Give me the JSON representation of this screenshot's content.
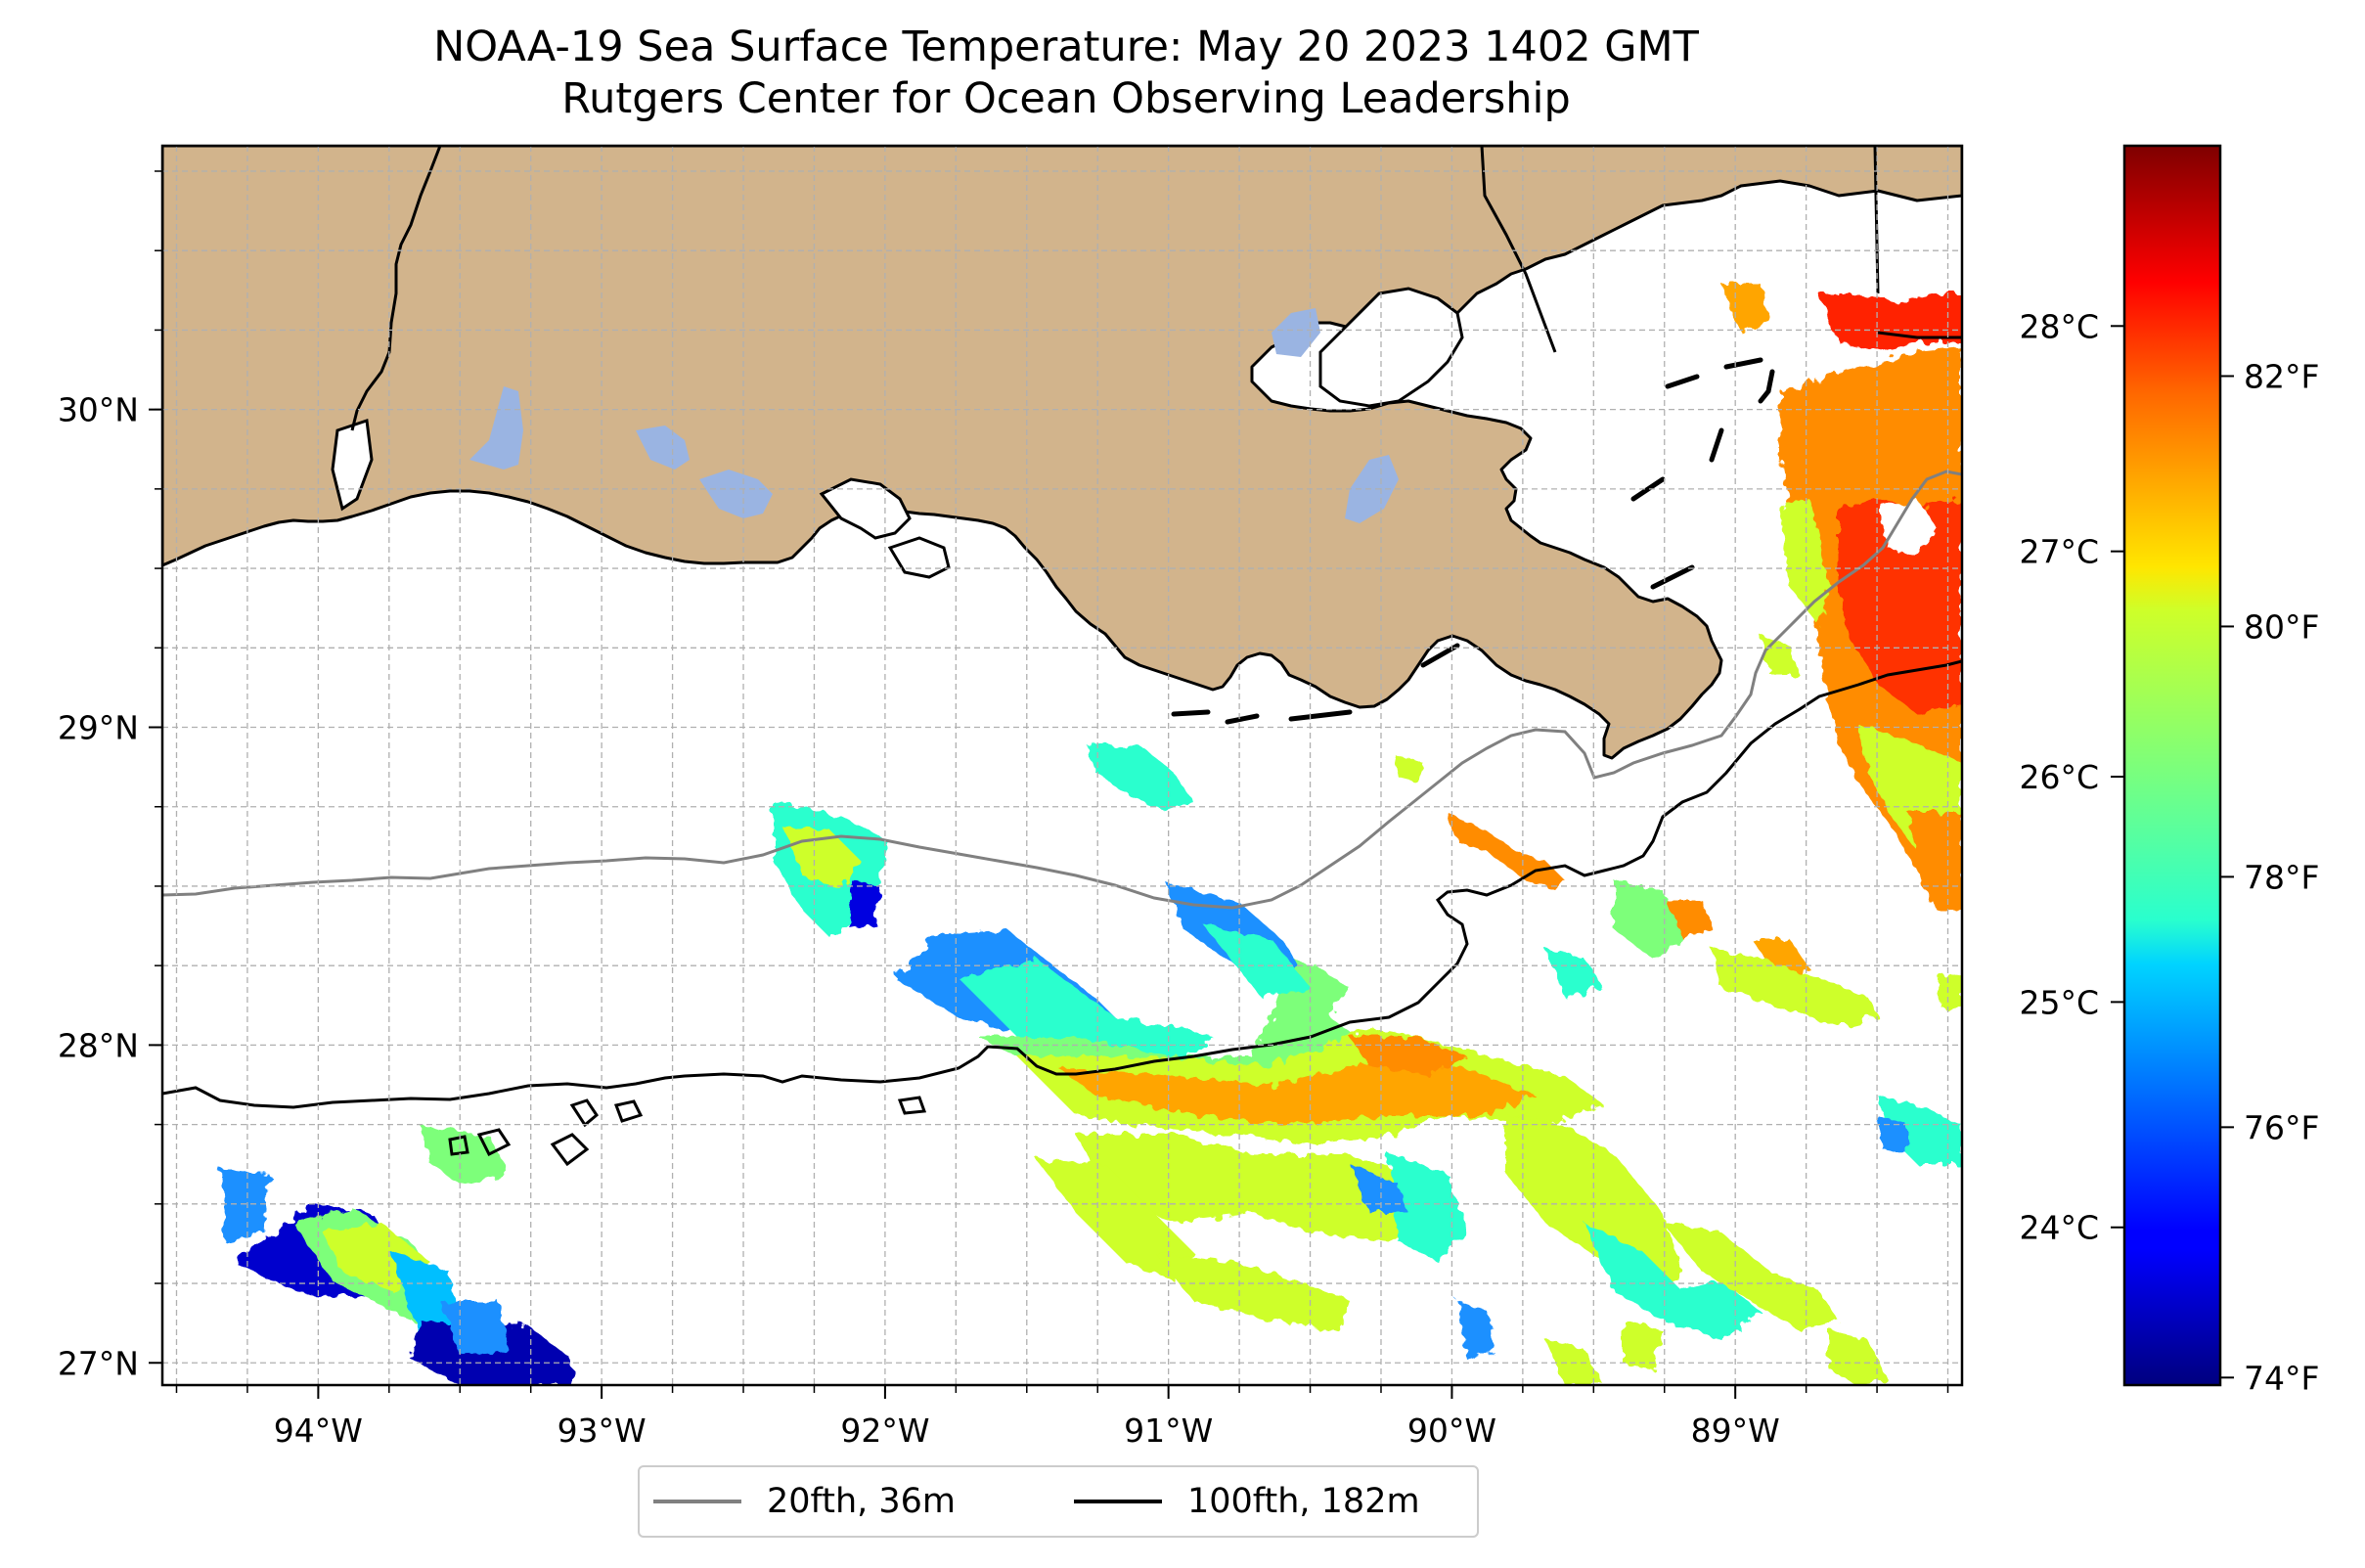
{
  "title": {
    "line1": "NOAA-19 Sea Surface Temperature: May 20 2023 1402 GMT",
    "line2": "Rutgers Center for Ocean Observing Leadership"
  },
  "map": {
    "lon_range": [
      -94.55,
      -88.2
    ],
    "lat_range": [
      26.93,
      30.83
    ],
    "lon_ticks": [
      {
        "value": -94,
        "label": "94°W"
      },
      {
        "value": -93,
        "label": "93°W"
      },
      {
        "value": -92,
        "label": "92°W"
      },
      {
        "value": -91,
        "label": "91°W"
      },
      {
        "value": -90,
        "label": "90°W"
      },
      {
        "value": -89,
        "label": "89°W"
      }
    ],
    "lat_ticks": [
      {
        "value": 27,
        "label": "27°N"
      },
      {
        "value": 28,
        "label": "28°N"
      },
      {
        "value": 29,
        "label": "29°N"
      },
      {
        "value": 30,
        "label": "30°N"
      }
    ],
    "gridlines": true,
    "land_color": "#d2b48c",
    "lake_color": "#9ab4e2",
    "ocean_color": "#ffffff"
  },
  "legend": {
    "placement": "bottom-center",
    "items": [
      {
        "label": "20fth, 36m",
        "color": "#808080"
      },
      {
        "label": "100fth, 182m",
        "color": "#000000"
      }
    ]
  },
  "colorbar": {
    "colormap": "jet",
    "celsius_range": [
      23.3,
      28.8
    ],
    "celsius_ticks": [
      {
        "value": 24,
        "label": "24°C"
      },
      {
        "value": 25,
        "label": "25°C"
      },
      {
        "value": 26,
        "label": "26°C"
      },
      {
        "value": 27,
        "label": "27°C"
      },
      {
        "value": 28,
        "label": "28°C"
      }
    ],
    "fahrenheit_ticks": [
      {
        "value": 74,
        "label": "74°F"
      },
      {
        "value": 76,
        "label": "76°F"
      },
      {
        "value": 78,
        "label": "78°F"
      },
      {
        "value": 80,
        "label": "80°F"
      },
      {
        "value": 82,
        "label": "82°F"
      }
    ]
  }
}
